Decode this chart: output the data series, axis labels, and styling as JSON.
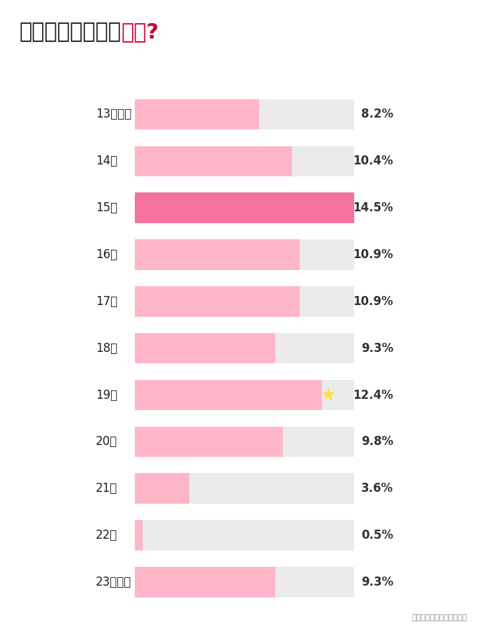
{
  "title_black": "ファーストキスは",
  "title_red": "いつ?",
  "title_fontsize": 22,
  "categories": [
    "13歳以下",
    "14歳",
    "15歳",
    "16歳",
    "17歳",
    "18歳",
    "19歳",
    "20歳",
    "21歳",
    "22歳",
    "23歳以上"
  ],
  "values": [
    8.2,
    10.4,
    14.5,
    10.9,
    10.9,
    9.3,
    12.4,
    9.8,
    3.6,
    0.5,
    9.3
  ],
  "max_value": 14.5,
  "highlight_index": 2,
  "star_index": 6,
  "bar_color_normal": "#FFB6C8",
  "bar_color_highlight": "#F472A0",
  "bar_bg_color": "#EBEBEB",
  "label_color": "#222222",
  "value_color": "#333333",
  "title_color_black": "#1a1a1a",
  "title_color_red": "#CC0033",
  "star_color": "#FFE033",
  "dashed_line_color": "#AAAAAA",
  "source_text": "マッチングアプリ大学調べ",
  "background_color": "#FFFFFF"
}
